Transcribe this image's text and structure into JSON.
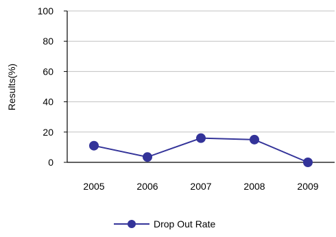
{
  "chart_data": {
    "type": "line",
    "title": "",
    "xlabel": "",
    "ylabel": "Results(%)",
    "categories": [
      "2005",
      "2006",
      "2007",
      "2008",
      "2009"
    ],
    "ylim": [
      0,
      100
    ],
    "yticks": [
      "0",
      "20",
      "40",
      "60",
      "80",
      "100"
    ],
    "grid": true,
    "legend_position": "bottom",
    "series": [
      {
        "name": "Drop Out Rate",
        "values": [
          11,
          3.5,
          16,
          15,
          0
        ],
        "color": "#333399"
      }
    ]
  }
}
